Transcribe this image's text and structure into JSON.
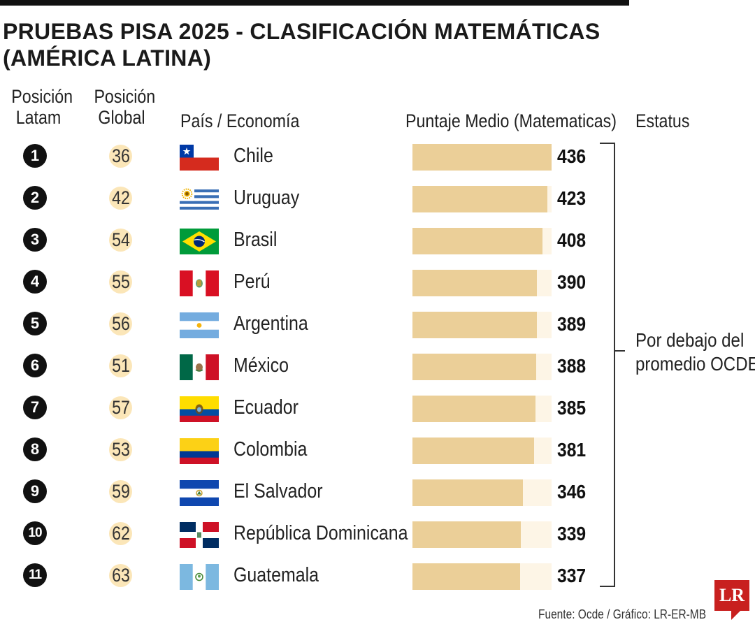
{
  "title": "PRUEBAS PISA 2025 - CLASIFICACIÓN MATEMÁTICAS (AMÉRICA LATINA)",
  "headers": {
    "pos_latam_1": "Posición",
    "pos_latam_2": "Latam",
    "pos_global_1": "Posición",
    "pos_global_2": "Global",
    "country": "País / Economía",
    "score": "Puntaje Medio (Matematicas)",
    "status": "Estatus"
  },
  "status_label": {
    "line1": "Por debajo del",
    "line2": "promedio OCDE"
  },
  "source": "Fuente: Ocde / Gráfico: LR-ER-MB",
  "logo": "LR",
  "colors": {
    "bar": "#ebcf98",
    "bar_track": "#fdf5e6",
    "global_circle": "#fbe6b8",
    "rank_circle": "#111111",
    "logo": "#c8201f"
  },
  "chart_data": {
    "type": "bar",
    "orientation": "horizontal",
    "title": "PRUEBAS PISA 2025 - CLASIFICACIÓN MATEMÁTICAS (AMÉRICA LATINA)",
    "xlabel": "Puntaje Medio (Matematicas)",
    "ylabel": "País / Economía",
    "xlim": [
      0,
      436
    ],
    "grid": false,
    "rows": [
      {
        "latam": "1",
        "global": "36",
        "country": "Chile",
        "flag": "chile",
        "value": 436
      },
      {
        "latam": "2",
        "global": "42",
        "country": "Uruguay",
        "flag": "uruguay",
        "value": 423
      },
      {
        "latam": "3",
        "global": "54",
        "country": "Brasil",
        "flag": "brazil",
        "value": 408
      },
      {
        "latam": "4",
        "global": "55",
        "country": "Perú",
        "flag": "peru",
        "value": 390
      },
      {
        "latam": "5",
        "global": "56",
        "country": "Argentina",
        "flag": "argentina",
        "value": 389
      },
      {
        "latam": "6",
        "global": "51",
        "country": "México",
        "flag": "mexico",
        "value": 388
      },
      {
        "latam": "7",
        "global": "57",
        "country": "Ecuador",
        "flag": "ecuador",
        "value": 385
      },
      {
        "latam": "8",
        "global": "53",
        "country": "Colombia",
        "flag": "colombia",
        "value": 381
      },
      {
        "latam": "9",
        "global": "59",
        "country": "El Salvador",
        "flag": "elsalvador",
        "value": 346
      },
      {
        "latam": "10",
        "global": "62",
        "country": "República Dominicana",
        "flag": "dominican",
        "value": 339
      },
      {
        "latam": "11",
        "global": "63",
        "country": "Guatemala",
        "flag": "guatemala",
        "value": 337
      }
    ]
  }
}
